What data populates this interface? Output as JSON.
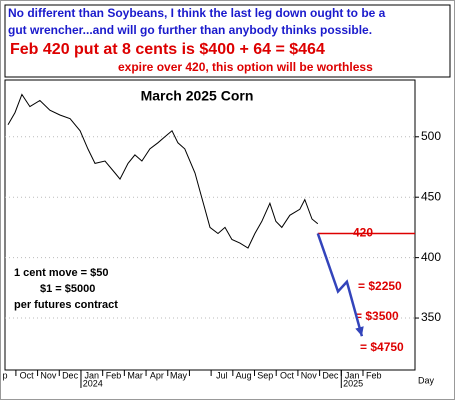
{
  "header": {
    "note_lines": [
      "No different than Soybeans, I think the last leg down ought to be a",
      "gut wrencher...and will go further than anybody thinks possible."
    ],
    "headline": "Feb 420 put at 8 cents is $400 + 64 = $464",
    "subline": "expire over 420, this option will be worthless"
  },
  "chart_data": {
    "type": "line",
    "title": "March 2025 Corn",
    "categories": [
      "p",
      "Oct",
      "Nov",
      "Dec",
      "Jan",
      "Feb",
      "Mar",
      "Apr",
      "May",
      null,
      "Jul",
      "Aug",
      "Sep",
      "Oct",
      "Nov",
      "Dec",
      "Jan",
      "Feb"
    ],
    "years": [
      {
        "label": "2024",
        "at": 4
      },
      {
        "label": "2025",
        "at": 16
      }
    ],
    "x_axis_label": "Day",
    "xlim": [
      0,
      18.9
    ],
    "ylim": [
      307,
      547
    ],
    "yticks": [
      350,
      400,
      450,
      500
    ],
    "series": [
      {
        "color": "#000000",
        "x": [
          0.14,
          0.46,
          0.78,
          1.15,
          1.61,
          2.07,
          2.53,
          3.0,
          3.46,
          3.82,
          4.15,
          4.61,
          5.07,
          5.3,
          5.67,
          5.99,
          6.31,
          6.68,
          7.05,
          7.37,
          7.7,
          7.97,
          8.29,
          8.76,
          8.99,
          9.22,
          9.45,
          9.82,
          10.14,
          10.46,
          10.83,
          11.2,
          11.52,
          11.84,
          12.21,
          12.49,
          12.76,
          13.13,
          13.59,
          13.82,
          14.15,
          14.42
        ],
        "values": [
          510,
          520,
          535,
          525,
          530,
          522,
          518,
          515,
          505,
          490,
          478,
          480,
          470,
          465,
          478,
          485,
          480,
          490,
          495,
          500,
          505,
          495,
          490,
          470,
          455,
          440,
          425,
          420,
          425,
          415,
          412,
          408,
          420,
          430,
          445,
          430,
          425,
          435,
          440,
          448,
          432,
          428
        ]
      },
      {
        "color": "#3344bb",
        "x": [
          14.42,
          15.35,
          15.76,
          16.45
        ],
        "values": [
          420,
          372,
          380,
          335
        ]
      }
    ],
    "level": {
      "value": 420,
      "label": "420",
      "color": "#dd0000"
    },
    "payoffs": [
      "= $2250",
      "= $3500",
      "= $4750"
    ],
    "contract_notes": [
      "1 cent move = $50",
      "$1 = $5000",
      "per futures contract"
    ]
  }
}
